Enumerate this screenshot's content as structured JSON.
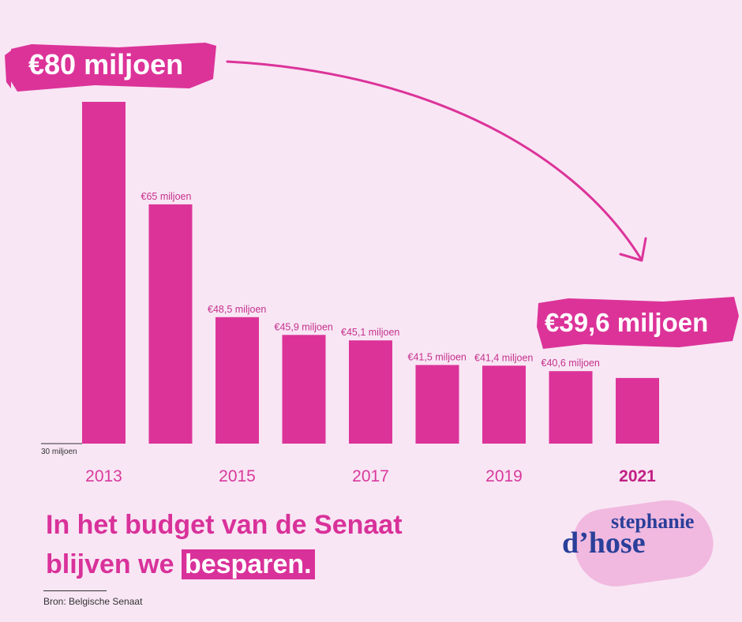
{
  "chart_data": {
    "type": "bar",
    "categories": [
      "2013",
      "2014",
      "2015",
      "2016",
      "2017",
      "2018",
      "2019",
      "2020",
      "2021"
    ],
    "values": [
      80,
      65,
      48.5,
      45.9,
      45.1,
      41.5,
      41.4,
      40.6,
      39.6
    ],
    "data_labels": [
      "",
      "€65 miljoen",
      "€48,5 miljoen",
      "€45,9 miljoen",
      "€45,1 miljoen",
      "€41,5 miljoen",
      "€41,4 miljoen",
      "€40,6 miljoen",
      ""
    ],
    "tick_labels": [
      "2013",
      "",
      "2015",
      "",
      "2017",
      "",
      "2019",
      "",
      "2021"
    ],
    "baseline_label": "30 miljoen",
    "ylim": [
      30,
      80
    ],
    "callout_start": "€80 miljoen",
    "callout_end": "€39,6 miljoen",
    "colors": {
      "bar": "#dc3399",
      "background": "#f8e6f4"
    }
  },
  "headline": {
    "line1": "In het budget van de Senaat",
    "line2_prefix": "blijven we",
    "line2_highlight": "besparen."
  },
  "source": "Bron: Belgische Senaat",
  "logo": {
    "top": "stephanie",
    "bottom": "d’hose"
  }
}
